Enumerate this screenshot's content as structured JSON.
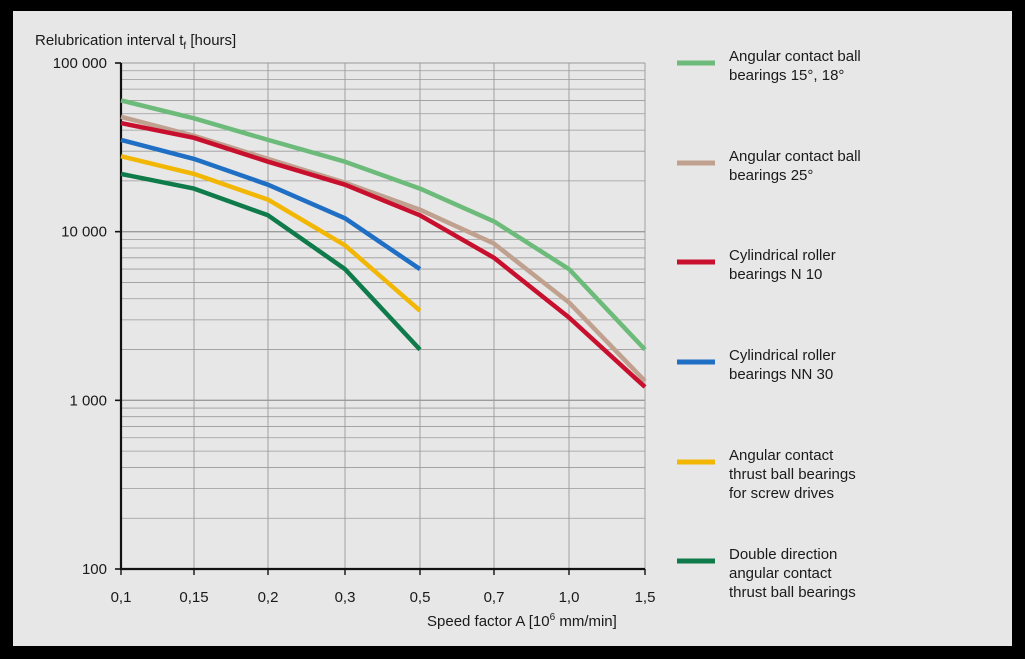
{
  "chart_data": {
    "type": "line",
    "y_scale": "log",
    "ylim": [
      100,
      100000
    ],
    "ylabel": "Relubrication interval t",
    "ylabel_sub": "f",
    "ylabel_unit": "[hours]",
    "y_ticks": [
      {
        "value": 100000,
        "label": "100 000"
      },
      {
        "value": 10000,
        "label": "10 000"
      },
      {
        "value": 1000,
        "label": "1 000"
      },
      {
        "value": 100,
        "label": "100"
      }
    ],
    "xlabel": "Speed factor A [10",
    "xlabel_sup": "6",
    "xlabel_unit": " mm/min]",
    "categories": [
      "0,1",
      "0,15",
      "0,2",
      "0,3",
      "0,5",
      "0,7",
      "1,0",
      "1,5"
    ],
    "grid": true,
    "legend_position": "right",
    "series": [
      {
        "name": "Angular contact ball bearings 15°, 18°",
        "legend_lines": [
          "Angular contact ball",
          "bearings 15°, 18°"
        ],
        "color": "#6dbb7a",
        "values": [
          60000,
          47000,
          35000,
          26000,
          18000,
          11500,
          6000,
          2000
        ]
      },
      {
        "name": "Angular contact ball bearings 25°",
        "legend_lines": [
          "Angular contact ball",
          "bearings 25°"
        ],
        "color": "#c0a08e",
        "values": [
          48000,
          37000,
          27000,
          19500,
          13500,
          8500,
          3800,
          1300
        ]
      },
      {
        "name": "Cylindrical roller bearings N 10",
        "legend_lines": [
          "Cylindrical roller",
          "bearings N 10"
        ],
        "color": "#c8102e",
        "values": [
          44000,
          36000,
          26000,
          19000,
          12500,
          7000,
          3100,
          1200
        ]
      },
      {
        "name": "Cylindrical roller bearings NN 30",
        "legend_lines": [
          "Cylindrical roller",
          "bearings NN 30"
        ],
        "color": "#1f6fc4",
        "values": [
          35000,
          27000,
          19000,
          12000,
          6000,
          null,
          null,
          null
        ]
      },
      {
        "name": "Angular contact thrust ball bearings for screw drives",
        "legend_lines": [
          "Angular contact",
          "thrust ball bearings",
          "for screw drives"
        ],
        "color": "#f2b705",
        "values": [
          28000,
          22000,
          15500,
          8300,
          3400,
          null,
          null,
          null
        ]
      },
      {
        "name": "Double direction angular contact thrust ball bearings",
        "legend_lines": [
          "Double direction",
          "angular contact",
          "thrust ball bearings"
        ],
        "color": "#0f7a4a",
        "values": [
          22000,
          18000,
          12500,
          6000,
          2000,
          null,
          null,
          null
        ]
      }
    ]
  }
}
